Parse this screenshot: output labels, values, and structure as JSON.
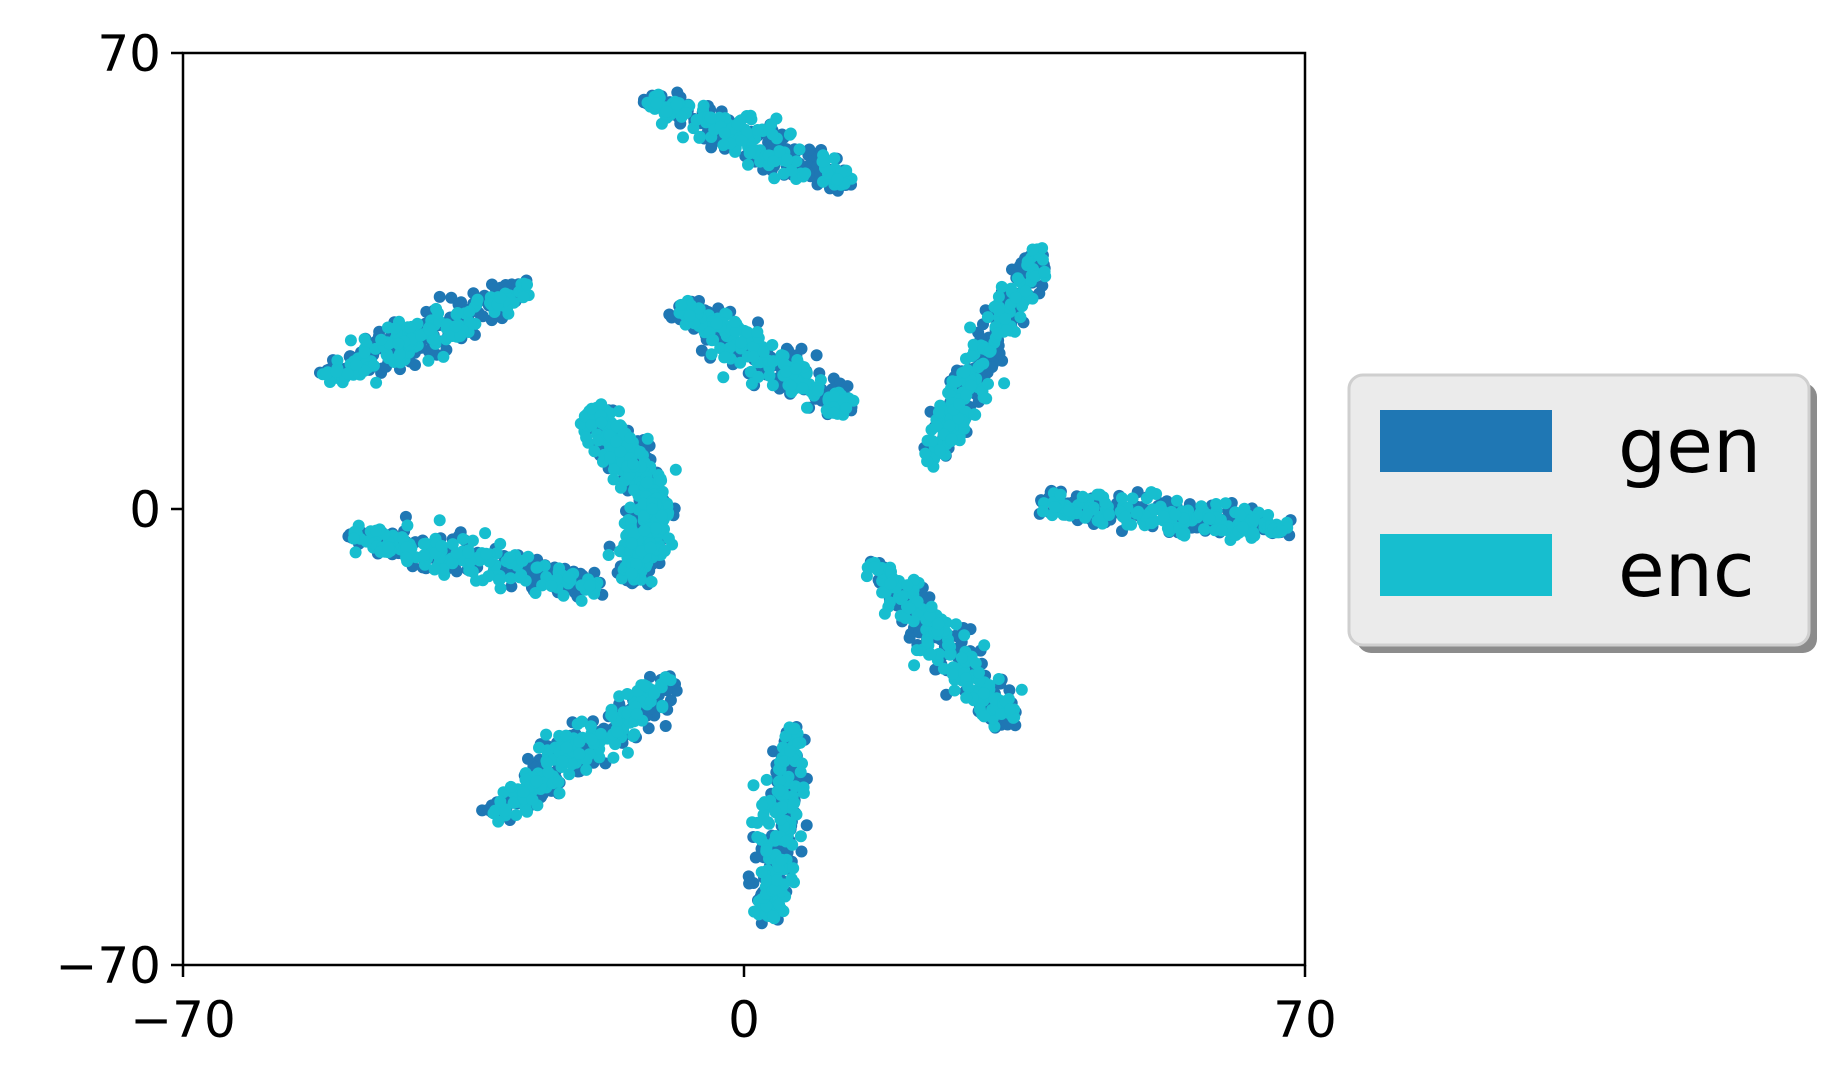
{
  "chart_data": {
    "type": "scatter",
    "title": "",
    "xlabel": "",
    "ylabel": "",
    "xlim": [
      -70,
      70
    ],
    "ylim": [
      -70,
      70
    ],
    "x_ticks": [
      -70,
      0,
      70
    ],
    "y_ticks": [
      -70,
      0,
      70
    ],
    "x_tick_labels": [
      "−70",
      "0",
      "70"
    ],
    "y_tick_labels": [
      "−70",
      "0",
      "70"
    ],
    "grid": false,
    "legend_position": "outside-right",
    "series": [
      {
        "name": "gen",
        "color": "#1f77b4",
        "clusters": [
          {
            "from": [
              -12,
              63
            ],
            "to": [
              13,
              50
            ],
            "spread": 1.7
          },
          {
            "from": [
              -8,
              31
            ],
            "to": [
              13,
              15
            ],
            "spread": 1.7
          },
          {
            "from": [
              -52,
              20
            ],
            "to": [
              -27,
              34
            ],
            "spread": 1.7
          },
          {
            "from": [
              -19,
              15
            ],
            "to": [
              -11,
              2
            ],
            "spread": 1.5
          },
          {
            "from": [
              -11,
              2
            ],
            "to": [
              -14,
              -11
            ],
            "spread": 1.5
          },
          {
            "from": [
              -49,
              -4
            ],
            "to": [
              -18,
              -12
            ],
            "spread": 1.6
          },
          {
            "from": [
              -31,
              -47
            ],
            "to": [
              -9,
              -26
            ],
            "spread": 1.8
          },
          {
            "from": [
              6,
              -34
            ],
            "to": [
              3,
              -63
            ],
            "spread": 1.5
          },
          {
            "from": [
              16,
              -8
            ],
            "to": [
              33,
              -33
            ],
            "spread": 1.7
          },
          {
            "from": [
              37,
              1
            ],
            "to": [
              68,
              -3
            ],
            "spread": 1.4
          },
          {
            "from": [
              23,
              7
            ],
            "to": [
              37,
              40
            ],
            "spread": 1.4
          }
        ]
      },
      {
        "name": "enc",
        "color": "#17becf",
        "clusters": [
          {
            "from": [
              -12,
              63
            ],
            "to": [
              13,
              50
            ],
            "spread": 1.7
          },
          {
            "from": [
              -8,
              31
            ],
            "to": [
              13,
              15
            ],
            "spread": 1.7
          },
          {
            "from": [
              -52,
              20
            ],
            "to": [
              -27,
              34
            ],
            "spread": 1.7
          },
          {
            "from": [
              -19,
              15
            ],
            "to": [
              -11,
              2
            ],
            "spread": 1.5
          },
          {
            "from": [
              -11,
              2
            ],
            "to": [
              -14,
              -11
            ],
            "spread": 1.5
          },
          {
            "from": [
              -49,
              -4
            ],
            "to": [
              -18,
              -12
            ],
            "spread": 1.6
          },
          {
            "from": [
              -31,
              -47
            ],
            "to": [
              -9,
              -26
            ],
            "spread": 1.8
          },
          {
            "from": [
              6,
              -34
            ],
            "to": [
              3,
              -63
            ],
            "spread": 1.5
          },
          {
            "from": [
              16,
              -8
            ],
            "to": [
              33,
              -33
            ],
            "spread": 1.7
          },
          {
            "from": [
              37,
              1
            ],
            "to": [
              68,
              -3
            ],
            "spread": 1.4
          },
          {
            "from": [
              23,
              7
            ],
            "to": [
              37,
              40
            ],
            "spread": 1.4
          }
        ]
      }
    ]
  }
}
